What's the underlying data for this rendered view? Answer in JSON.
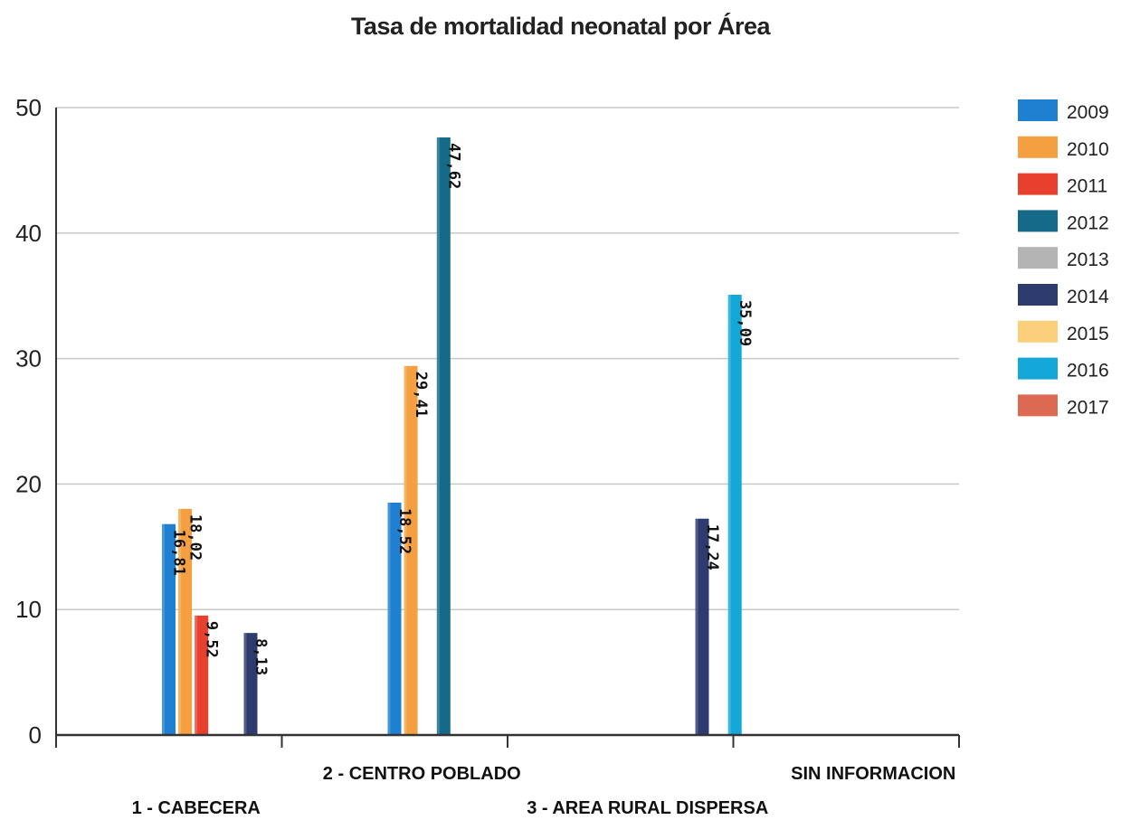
{
  "chart_data": {
    "type": "bar",
    "title": "Tasa de mortalidad neonatal por Área",
    "xlabel": "",
    "ylabel": "",
    "ylim": [
      0,
      50
    ],
    "yticks": [
      0,
      10,
      20,
      30,
      40,
      50
    ],
    "grid": true,
    "legend_position": "right",
    "categories": [
      "1 - CABECERA",
      "2 - CENTRO POBLADO",
      "3 - AREA RURAL DISPERSA",
      "SIN INFORMACION"
    ],
    "series": [
      {
        "name": "2009",
        "color": "#1f7fd1",
        "values": [
          16.81,
          18.52,
          null,
          null
        ],
        "labels": [
          "16,81",
          "18,52",
          null,
          null
        ]
      },
      {
        "name": "2010",
        "color": "#f5a040",
        "values": [
          18.02,
          29.41,
          null,
          null
        ],
        "labels": [
          "18,02",
          "29,41",
          null,
          null
        ]
      },
      {
        "name": "2011",
        "color": "#e8402f",
        "values": [
          9.52,
          null,
          null,
          null
        ],
        "labels": [
          "9,52",
          null,
          null,
          null
        ]
      },
      {
        "name": "2012",
        "color": "#156a8a",
        "values": [
          null,
          47.62,
          null,
          null
        ],
        "labels": [
          null,
          "47,62",
          null,
          null
        ]
      },
      {
        "name": "2013",
        "color": "#b4b4b4",
        "values": [
          null,
          null,
          null,
          null
        ],
        "labels": [
          null,
          null,
          null,
          null
        ]
      },
      {
        "name": "2014",
        "color": "#2d3b6e",
        "values": [
          8.13,
          null,
          17.24,
          null
        ],
        "labels": [
          "8,13",
          null,
          "17,24",
          null
        ]
      },
      {
        "name": "2015",
        "color": "#fcd07a",
        "values": [
          null,
          null,
          null,
          null
        ],
        "labels": [
          null,
          null,
          null,
          null
        ]
      },
      {
        "name": "2016",
        "color": "#14a8d8",
        "values": [
          null,
          null,
          35.09,
          null
        ],
        "labels": [
          null,
          null,
          "35,09",
          null
        ]
      },
      {
        "name": "2017",
        "color": "#dc6a52",
        "values": [
          null,
          null,
          null,
          null
        ],
        "labels": [
          null,
          null,
          null,
          null
        ]
      }
    ]
  }
}
